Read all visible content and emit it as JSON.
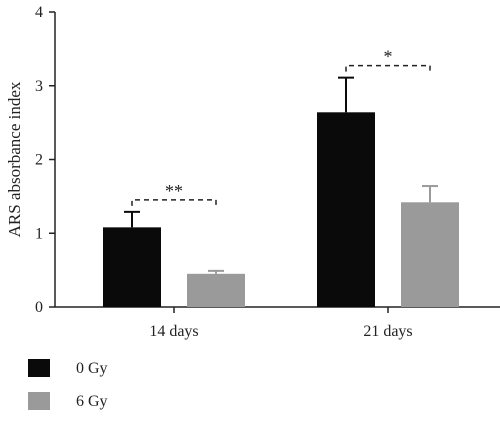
{
  "chart_data": {
    "type": "bar",
    "categories": [
      "14 days",
      "21 days"
    ],
    "series": [
      {
        "name": "0 Gy",
        "values": [
          1.08,
          2.64
        ],
        "errors": [
          0.21,
          0.47
        ],
        "color": "#0a0a0a"
      },
      {
        "name": "6 Gy",
        "values": [
          0.45,
          1.42
        ],
        "errors": [
          0.04,
          0.22
        ],
        "color": "#9a9a9a"
      }
    ],
    "ylabel": "ARS absorbance index",
    "xlabel": "",
    "ylim": [
      0,
      4
    ],
    "yticks": [
      0,
      1,
      2,
      3,
      4
    ],
    "grid": false,
    "legend_position": "bottom-left",
    "significance": [
      {
        "category": "14 days",
        "label": "**"
      },
      {
        "category": "21 days",
        "label": "*"
      }
    ]
  }
}
